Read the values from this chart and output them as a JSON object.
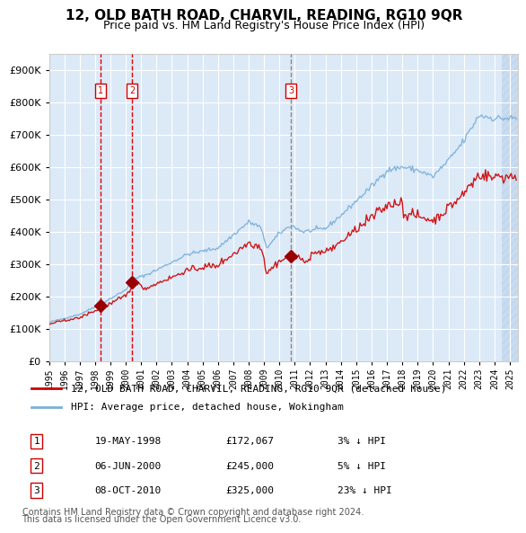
{
  "title": "12, OLD BATH ROAD, CHARVIL, READING, RG10 9QR",
  "subtitle": "Price paid vs. HM Land Registry's House Price Index (HPI)",
  "title_fontsize": 11,
  "subtitle_fontsize": 9,
  "bg_color": "#dce9f7",
  "plot_bg_color": "#dce9f7",
  "hatch_color": "#b8cfe8",
  "grid_color": "#ffffff",
  "red_line_color": "#cc0000",
  "blue_line_color": "#7ab0d8",
  "sale_marker_color": "#990000",
  "dashed_red_color": "#dd0000",
  "dashed_grey_color": "#888888",
  "ylabel_color": "#333333",
  "transactions": [
    {
      "num": 1,
      "date_x": 1998.38,
      "price": 172067,
      "label": "1",
      "line_color": "#dd0000",
      "dashed": true
    },
    {
      "num": 2,
      "date_x": 2000.42,
      "price": 245000,
      "label": "2",
      "line_color": "#dd0000",
      "dashed": true
    },
    {
      "num": 3,
      "date_x": 2010.77,
      "price": 325000,
      "label": "3",
      "line_color": "#888888",
      "dashed": true
    }
  ],
  "ylim": [
    0,
    950000
  ],
  "yticks": [
    0,
    100000,
    200000,
    300000,
    400000,
    500000,
    600000,
    700000,
    800000,
    900000
  ],
  "ytick_labels": [
    "£0",
    "£100K",
    "£200K",
    "£300K",
    "£400K",
    "£500K",
    "£600K",
    "£700K",
    "£800K",
    "£900K"
  ],
  "xlim_start": 1995.0,
  "xlim_end": 2025.5,
  "footer_line1": "Contains HM Land Registry data © Crown copyright and database right 2024.",
  "footer_line2": "This data is licensed under the Open Government Licence v3.0.",
  "legend_entry1": "12, OLD BATH ROAD, CHARVIL, READING, RG10 9QR (detached house)",
  "legend_entry2": "HPI: Average price, detached house, Wokingham",
  "table_rows": [
    {
      "num": "1",
      "date": "19-MAY-1998",
      "price": "£172,067",
      "hpi": "3% ↓ HPI"
    },
    {
      "num": "2",
      "date": "06-JUN-2000",
      "price": "£245,000",
      "hpi": "5% ↓ HPI"
    },
    {
      "num": "3",
      "date": "08-OCT-2010",
      "price": "£325,000",
      "hpi": "23% ↓ HPI"
    }
  ]
}
